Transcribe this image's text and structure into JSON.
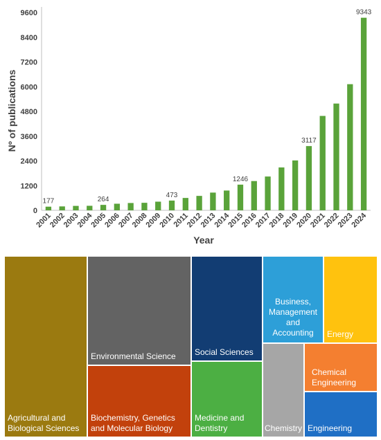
{
  "chart_data": [
    {
      "type": "bar",
      "xlabel": "Year",
      "ylabel": "Nº of publications",
      "ylim": [
        0,
        9600
      ],
      "yticks": [
        0,
        1200,
        2400,
        3600,
        4800,
        6000,
        7200,
        8400,
        9600
      ],
      "yticks_text": [
        "0",
        "1200",
        "2400",
        "3600",
        "4800",
        "6000",
        "7200",
        "8400",
        "9600"
      ],
      "categories": [
        "2001",
        "2002",
        "2003",
        "2004",
        "2005",
        "2006",
        "2007",
        "2008",
        "2009",
        "2010",
        "2011",
        "2012",
        "2013",
        "2014",
        "2015",
        "2016",
        "2017",
        "2018",
        "2019",
        "2020",
        "2021",
        "2022",
        "2023",
        "2024"
      ],
      "values": [
        177,
        190,
        215,
        220,
        264,
        320,
        355,
        365,
        420,
        473,
        600,
        700,
        860,
        960,
        1246,
        1420,
        1640,
        2080,
        2420,
        3117,
        4580,
        5180,
        6120,
        9343
      ],
      "data_labels": [
        {
          "category": "2001",
          "text": "177"
        },
        {
          "category": "2005",
          "text": "264"
        },
        {
          "category": "2010",
          "text": "473"
        },
        {
          "category": "2015",
          "text": "1246"
        },
        {
          "category": "2020",
          "text": "3117"
        },
        {
          "category": "2024",
          "text": "9343"
        }
      ],
      "bar_color": "#5aa33a",
      "grid": false
    },
    {
      "type": "treemap",
      "cells": [
        {
          "label": "Agricultural and Biological Sciences",
          "color": "#9b7a10"
        },
        {
          "label": "Environmental Science",
          "color": "#636363"
        },
        {
          "label": "Biochemistry, Genetics and Molecular Biology",
          "color": "#c2410c"
        },
        {
          "label": "Social Sciences",
          "color": "#123d73"
        },
        {
          "label": "Medicine and Dentistry",
          "color": "#4caf43"
        },
        {
          "label": "Business, Management and Accounting",
          "color": "#2d9fd8"
        },
        {
          "label": "Energy",
          "color": "#ffc20e"
        },
        {
          "label": "Chemistry",
          "color": "#a6a6a6"
        },
        {
          "label": "Chemical Engineering",
          "color": "#f47f30"
        },
        {
          "label": "Engineering",
          "color": "#1f6fc5"
        }
      ]
    }
  ]
}
